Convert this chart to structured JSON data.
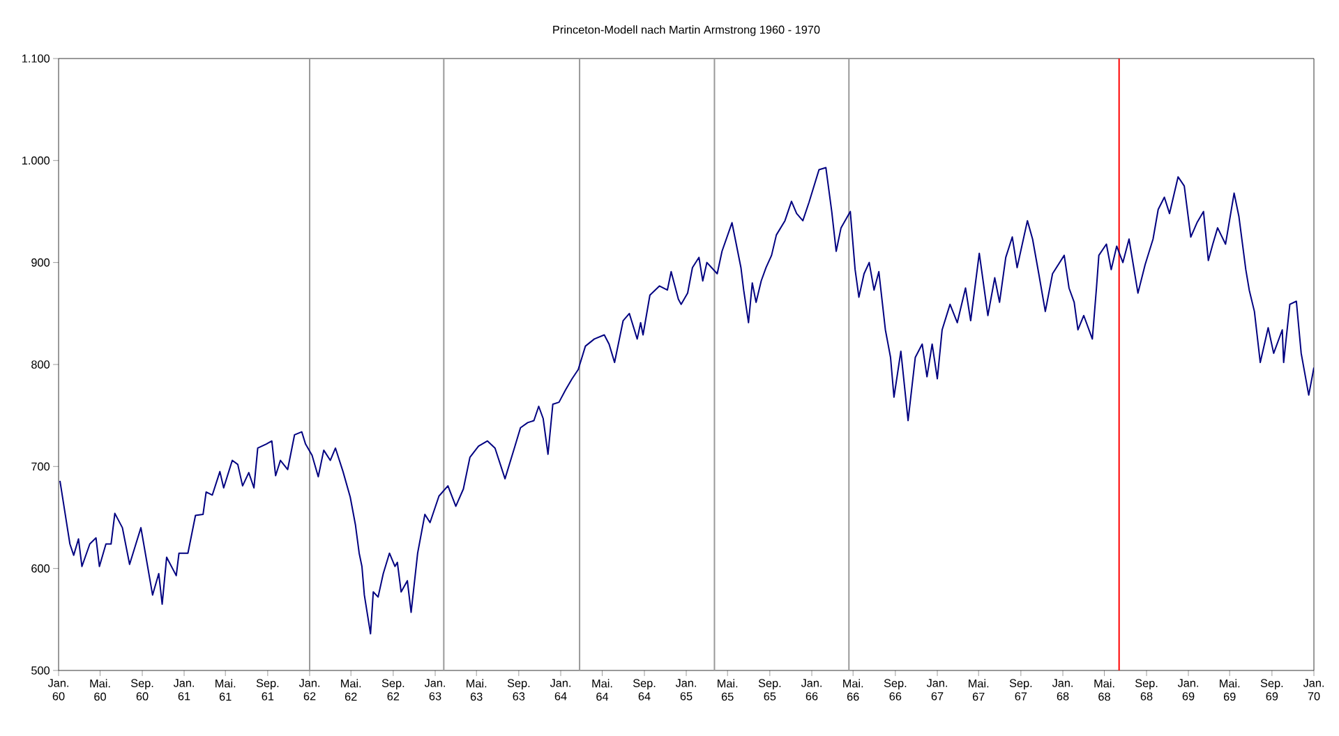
{
  "chart_data": {
    "type": "line",
    "title": "Princeton-Modell nach Martin Armstrong 1960 - 1970",
    "x": [
      "1960-01-05",
      "1960-01-19",
      "1960-02-03",
      "1960-02-14",
      "1960-02-28",
      "1960-03-09",
      "1960-04-01",
      "1960-04-19",
      "1960-04-29",
      "1960-05-18",
      "1960-06-02",
      "1960-06-13",
      "1960-07-05",
      "1960-07-26",
      "1960-08-28",
      "1960-10-01",
      "1960-10-19",
      "1960-10-29",
      "1960-11-11",
      "1960-12-09",
      "1960-12-17",
      "1961-01-12",
      "1961-02-03",
      "1961-02-25",
      "1961-03-06",
      "1961-03-24",
      "1961-04-15",
      "1961-04-26",
      "1961-05-21",
      "1961-06-06",
      "1961-06-20",
      "1961-07-08",
      "1961-07-23",
      "1961-08-03",
      "1961-08-28",
      "1961-09-13",
      "1961-09-24",
      "1961-10-08",
      "1961-10-29",
      "1961-11-18",
      "1961-12-09",
      "1961-12-20",
      "1962-01-08",
      "1962-01-26",
      "1962-02-11",
      "1962-03-02",
      "1962-03-17",
      "1962-04-08",
      "1962-04-29",
      "1962-05-14",
      "1962-05-25",
      "1962-06-02",
      "1962-06-09",
      "1962-06-27",
      "1962-07-05",
      "1962-07-19",
      "1962-08-03",
      "1962-08-21",
      "1962-09-06",
      "1962-09-13",
      "1962-09-24",
      "1962-10-12",
      "1962-10-23",
      "1962-11-11",
      "1962-12-02",
      "1962-12-17",
      "1963-01-12",
      "1963-02-07",
      "1963-03-02",
      "1963-03-24",
      "1963-04-12",
      "1963-05-07",
      "1963-06-02",
      "1963-06-24",
      "1963-07-23",
      "1963-08-21",
      "1963-09-06",
      "1963-09-27",
      "1963-10-15",
      "1963-10-29",
      "1963-11-11",
      "1963-11-25",
      "1963-12-09",
      "1963-12-27",
      "1964-01-15",
      "1964-02-03",
      "1964-02-21",
      "1964-03-13",
      "1964-04-08",
      "1964-05-07",
      "1964-05-21",
      "1964-06-06",
      "1964-07-01",
      "1964-07-19",
      "1964-08-11",
      "1964-08-21",
      "1964-08-28",
      "1964-09-17",
      "1964-10-15",
      "1964-11-07",
      "1964-11-18",
      "1964-12-09",
      "1964-12-17",
      "1965-01-05",
      "1965-01-19",
      "1965-02-07",
      "1965-02-18",
      "1965-03-02",
      "1965-04-01",
      "1965-04-15",
      "1965-05-14",
      "1965-06-09",
      "1965-06-17",
      "1965-07-01",
      "1965-07-12",
      "1965-07-23",
      "1965-08-07",
      "1965-08-21",
      "1965-09-06",
      "1965-09-20",
      "1965-10-15",
      "1965-11-03",
      "1965-11-18",
      "1965-12-06",
      "1965-12-24",
      "1966-01-22",
      "1966-02-11",
      "1966-02-28",
      "1966-03-13",
      "1966-03-27",
      "1966-04-23",
      "1966-05-07",
      "1966-05-18",
      "1966-06-02",
      "1966-06-17",
      "1966-07-01",
      "1966-07-15",
      "1966-08-03",
      "1966-08-18",
      "1966-08-28",
      "1966-09-17",
      "1966-10-08",
      "1966-10-29",
      "1966-11-18",
      "1966-12-02",
      "1966-12-17",
      "1967-01-01",
      "1967-01-15",
      "1967-02-07",
      "1967-02-28",
      "1967-03-24",
      "1967-04-08",
      "1967-05-03",
      "1967-05-28",
      "1967-06-17",
      "1967-07-01",
      "1967-07-19",
      "1967-08-07",
      "1967-08-21",
      "1967-09-20",
      "1967-10-05",
      "1967-10-23",
      "1967-11-11",
      "1967-12-02",
      "1968-01-05",
      "1968-01-19",
      "1968-02-03",
      "1968-02-14",
      "1968-03-02",
      "1968-03-27",
      "1968-04-08",
      "1968-04-15",
      "1968-05-07",
      "1968-05-21",
      "1968-06-06",
      "1968-06-24",
      "1968-07-12",
      "1968-08-07",
      "1968-08-28",
      "1968-09-20",
      "1968-10-05",
      "1968-10-23",
      "1968-11-07",
      "1968-12-02",
      "1968-12-20",
      "1969-01-08",
      "1969-01-26",
      "1969-02-14",
      "1969-02-28",
      "1969-03-13",
      "1969-03-27",
      "1969-04-19",
      "1969-05-14",
      "1969-05-28",
      "1969-06-17",
      "1969-06-27",
      "1969-07-12",
      "1969-07-29",
      "1969-08-21",
      "1969-09-06",
      "1969-10-01",
      "1969-10-05",
      "1969-10-23",
      "1969-11-11",
      "1969-11-25",
      "1969-12-17",
      "1970-01-01"
    ],
    "series": [
      {
        "color": "#000080",
        "values": [
          686,
          656,
          624,
          613,
          629,
          602,
          624,
          630,
          602,
          624,
          624,
          654,
          640,
          604,
          640,
          574,
          595,
          565,
          611,
          593,
          615,
          615,
          652,
          653,
          675,
          672,
          695,
          679,
          706,
          702,
          681,
          694,
          679,
          718,
          722,
          725,
          691,
          706,
          697,
          731,
          734,
          722,
          711,
          690,
          716,
          706,
          718,
          695,
          670,
          643,
          615,
          602,
          574,
          536,
          577,
          572,
          595,
          615,
          602,
          606,
          577,
          588,
          557,
          615,
          653,
          645,
          671,
          681,
          661,
          678,
          709,
          720,
          725,
          718,
          688,
          720,
          738,
          743,
          745,
          759,
          747,
          712,
          761,
          763,
          775,
          786,
          795,
          818,
          825,
          829,
          820,
          802,
          843,
          850,
          825,
          841,
          829,
          868,
          877,
          873,
          891,
          864,
          859,
          870,
          895,
          905,
          882,
          900,
          889,
          911,
          939,
          895,
          873,
          841,
          880,
          861,
          882,
          895,
          907,
          927,
          941,
          960,
          948,
          941,
          959,
          991,
          993,
          950,
          911,
          934,
          950,
          893,
          866,
          889,
          900,
          873,
          891,
          834,
          807,
          768,
          813,
          745,
          807,
          820,
          788,
          820,
          786,
          834,
          859,
          841,
          875,
          843,
          909,
          848,
          885,
          861,
          905,
          925,
          895,
          941,
          923,
          889,
          852,
          889,
          907,
          875,
          861,
          834,
          848,
          825,
          875,
          907,
          918,
          893,
          916,
          900,
          923,
          870,
          898,
          923,
          952,
          964,
          948,
          984,
          975,
          925,
          939,
          950,
          902,
          918,
          934,
          918,
          968,
          945,
          893,
          873,
          852,
          802,
          836,
          811,
          834,
          802,
          859,
          862,
          811,
          770,
          797
        ]
      }
    ],
    "xlim": [
      "1960-01-01",
      "1970-01-01"
    ],
    "ylim": [
      500,
      1100
    ],
    "xticks": [
      {
        "value": "1960-01-01",
        "label": "Jan. 60"
      },
      {
        "value": "1960-05-01",
        "label": "Mai. 60"
      },
      {
        "value": "1960-09-01",
        "label": "Sep. 60"
      },
      {
        "value": "1961-01-01",
        "label": "Jan. 61"
      },
      {
        "value": "1961-05-01",
        "label": "Mai. 61"
      },
      {
        "value": "1961-09-01",
        "label": "Sep. 61"
      },
      {
        "value": "1962-01-01",
        "label": "Jan. 62"
      },
      {
        "value": "1962-05-01",
        "label": "Mai. 62"
      },
      {
        "value": "1962-09-01",
        "label": "Sep. 62"
      },
      {
        "value": "1963-01-01",
        "label": "Jan. 63"
      },
      {
        "value": "1963-05-01",
        "label": "Mai. 63"
      },
      {
        "value": "1963-09-01",
        "label": "Sep. 63"
      },
      {
        "value": "1964-01-01",
        "label": "Jan. 64"
      },
      {
        "value": "1964-05-01",
        "label": "Mai. 64"
      },
      {
        "value": "1964-09-01",
        "label": "Sep. 64"
      },
      {
        "value": "1965-01-01",
        "label": "Jan. 65"
      },
      {
        "value": "1965-05-01",
        "label": "Mai. 65"
      },
      {
        "value": "1965-09-01",
        "label": "Sep. 65"
      },
      {
        "value": "1966-01-01",
        "label": "Jan. 66"
      },
      {
        "value": "1966-05-01",
        "label": "Mai. 66"
      },
      {
        "value": "1966-09-01",
        "label": "Sep. 66"
      },
      {
        "value": "1967-01-01",
        "label": "Jan. 67"
      },
      {
        "value": "1967-05-01",
        "label": "Mai. 67"
      },
      {
        "value": "1967-09-01",
        "label": "Sep. 67"
      },
      {
        "value": "1968-01-01",
        "label": "Jan. 68"
      },
      {
        "value": "1968-05-01",
        "label": "Mai. 68"
      },
      {
        "value": "1968-09-01",
        "label": "Sep. 68"
      },
      {
        "value": "1969-01-01",
        "label": "Jan. 69"
      },
      {
        "value": "1969-05-01",
        "label": "Mai. 69"
      },
      {
        "value": "1969-09-01",
        "label": "Sep. 69"
      },
      {
        "value": "1970-01-01",
        "label": "Jan. 70"
      }
    ],
    "yticks": [
      500,
      600,
      700,
      800,
      900,
      {
        "value": 1000,
        "label": "1.000"
      },
      {
        "value": 1100,
        "label": "1.100"
      }
    ],
    "ref_lines": [
      {
        "axis": "x",
        "value": "1962-01-01",
        "color": "#999999"
      },
      {
        "axis": "x",
        "value": "1963-01-26",
        "color": "#999999"
      },
      {
        "axis": "x",
        "value": "1964-02-25",
        "color": "#999999"
      },
      {
        "axis": "x",
        "value": "1965-03-24",
        "color": "#999999"
      },
      {
        "axis": "x",
        "value": "1966-04-19",
        "color": "#999999"
      },
      {
        "axis": "x",
        "value": "1968-06-13",
        "color": "#ff0000"
      }
    ],
    "grid": false,
    "legend": false,
    "marker": "none",
    "line_style": "solid"
  }
}
